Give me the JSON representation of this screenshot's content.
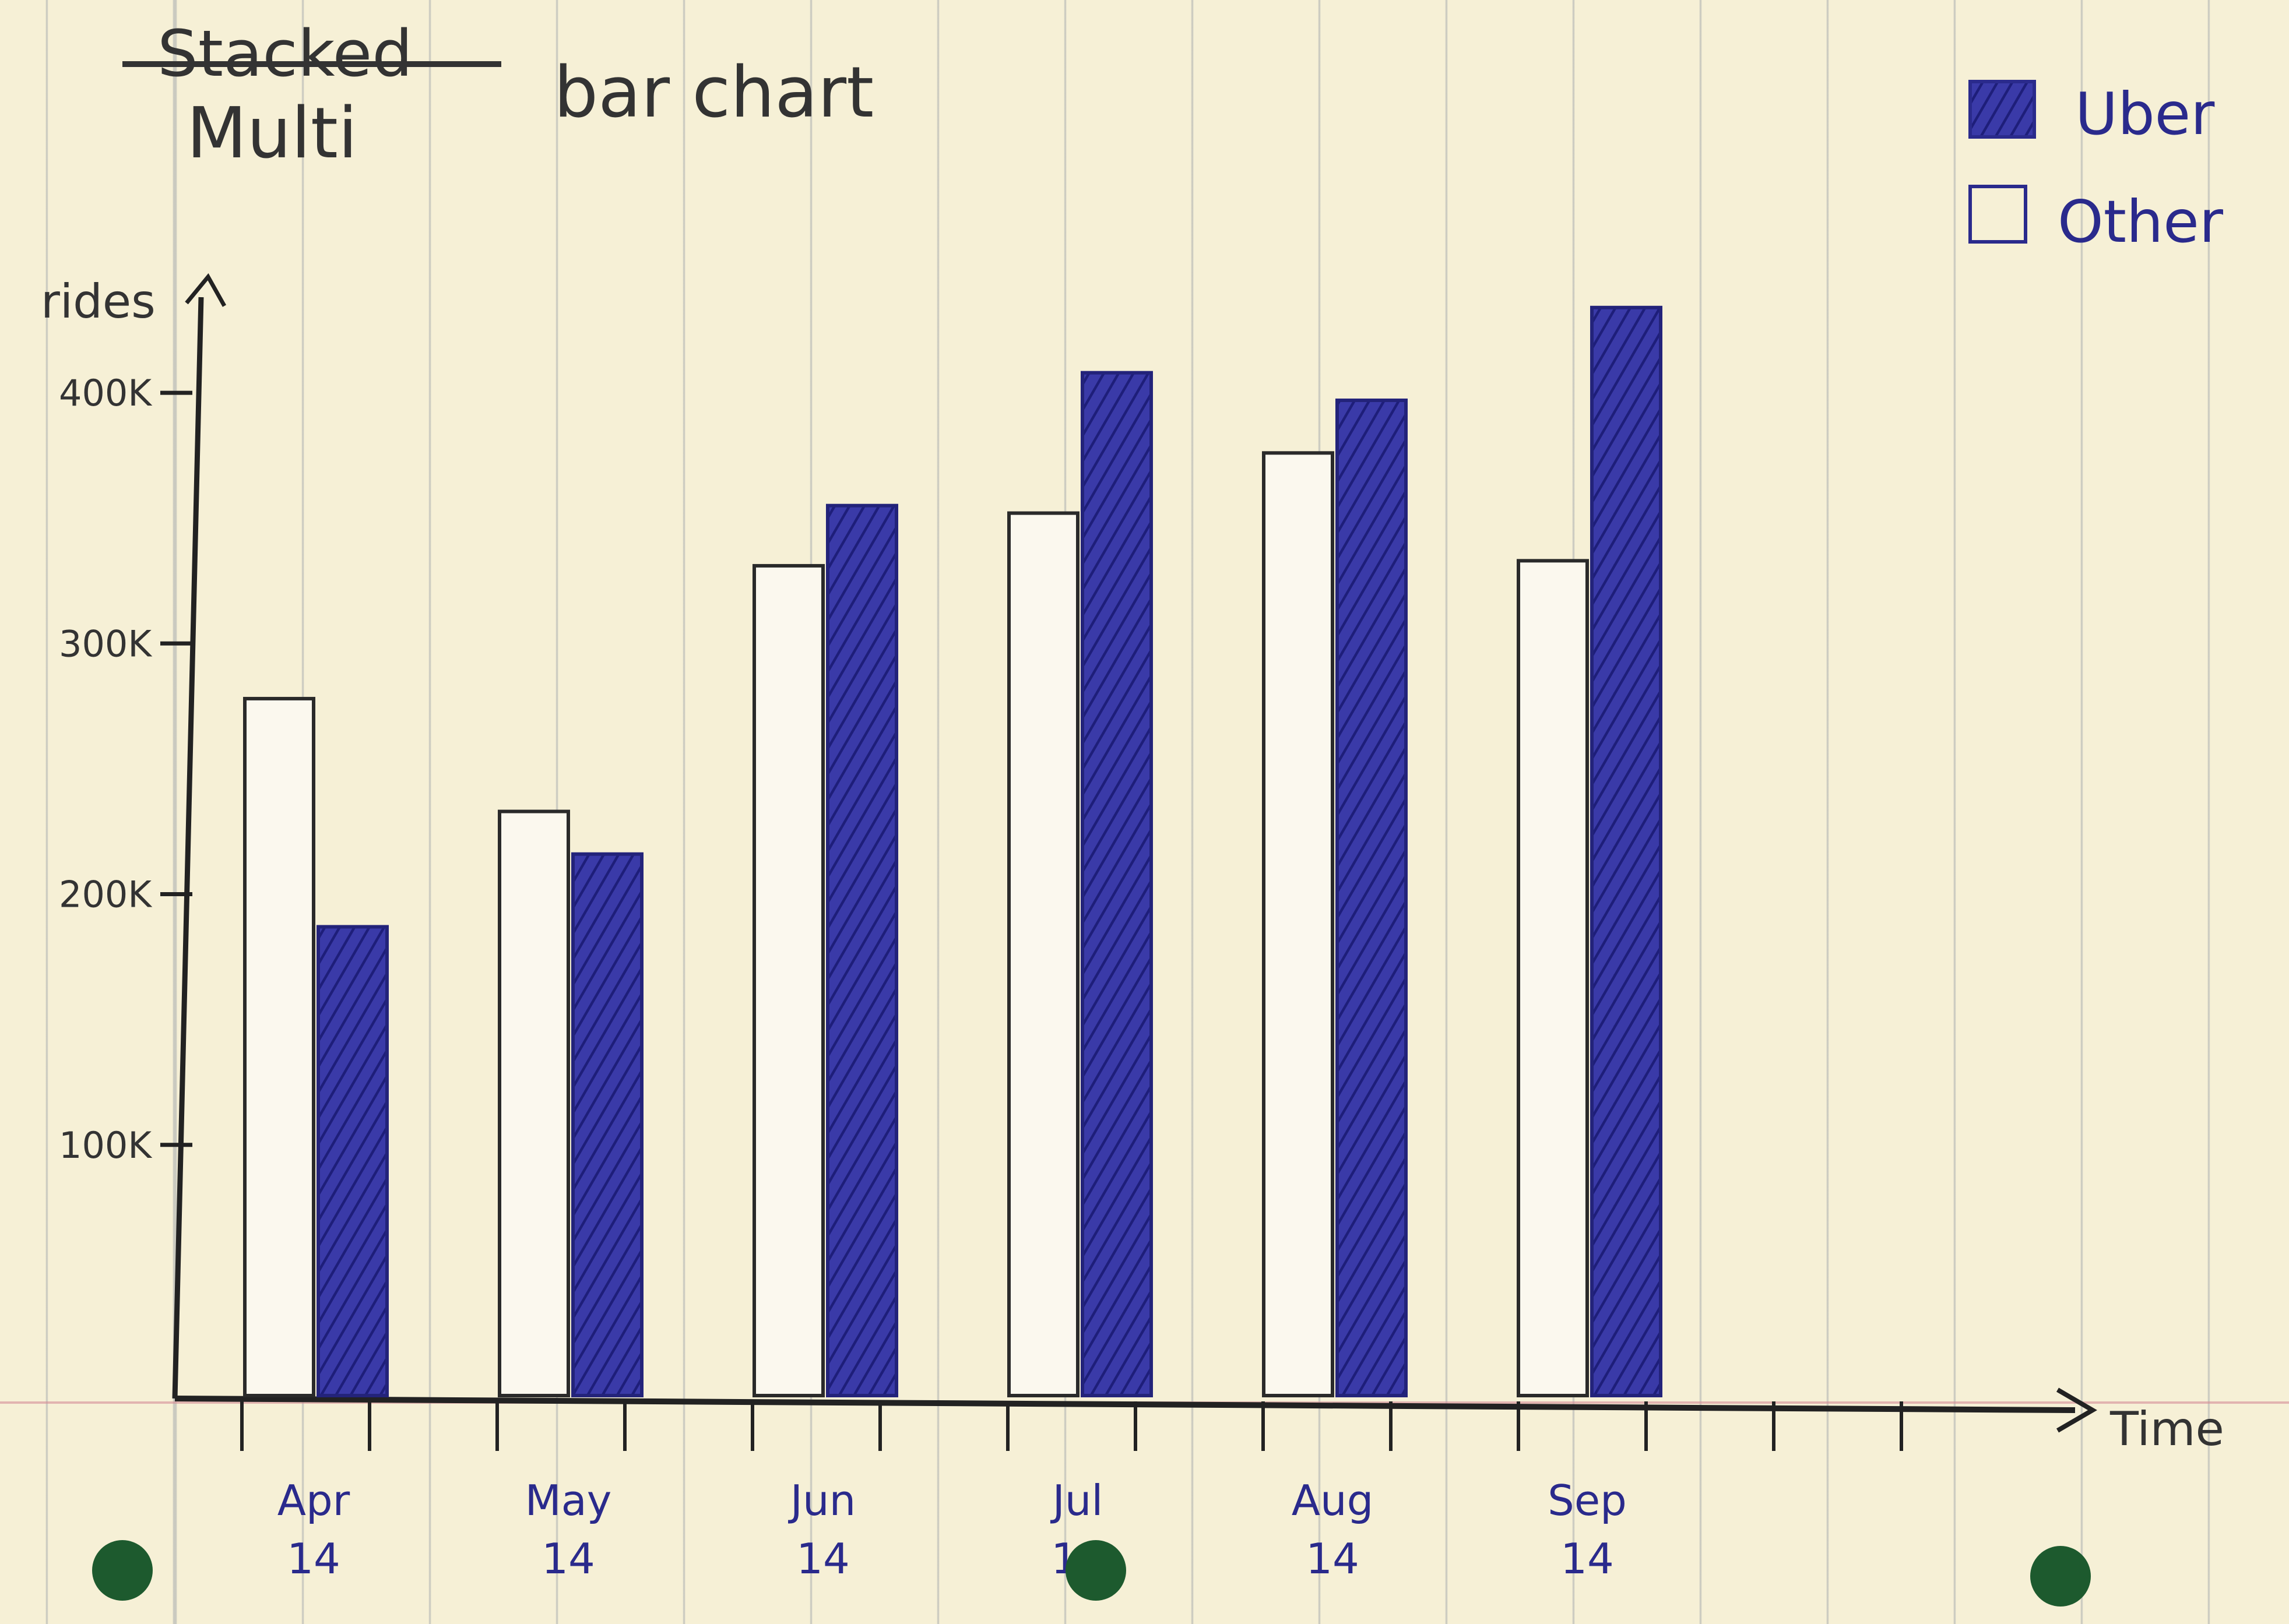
{
  "title": {
    "struck": "Stacked",
    "replacement": "Multi",
    "rest": "bar chart"
  },
  "chart_data": {
    "type": "bar",
    "xlabel": "Time",
    "ylabel": "rides",
    "ylim": [
      0,
      430000
    ],
    "yticks": [
      {
        "value": 100000,
        "label": "100K"
      },
      {
        "value": 200000,
        "label": "200K"
      },
      {
        "value": 300000,
        "label": "300K"
      },
      {
        "value": 400000,
        "label": "400K"
      }
    ],
    "categories": [
      {
        "month": "Apr",
        "year": "14"
      },
      {
        "month": "May",
        "year": "14"
      },
      {
        "month": "Jun",
        "year": "14"
      },
      {
        "month": "Jul",
        "year": "14"
      },
      {
        "month": "Aug",
        "year": "14"
      },
      {
        "month": "Sep",
        "year": "14"
      }
    ],
    "series": [
      {
        "name": "Other",
        "color": "#ffffff",
        "values": [
          278000,
          233000,
          331000,
          352000,
          376000,
          333000
        ]
      },
      {
        "name": "Uber",
        "color": "#2b2b9a",
        "values": [
          187000,
          216000,
          355000,
          408000,
          397000,
          434000
        ]
      }
    ],
    "legend": {
      "position": "top-right",
      "entries": [
        "Uber",
        "Other"
      ]
    },
    "grid": false
  }
}
